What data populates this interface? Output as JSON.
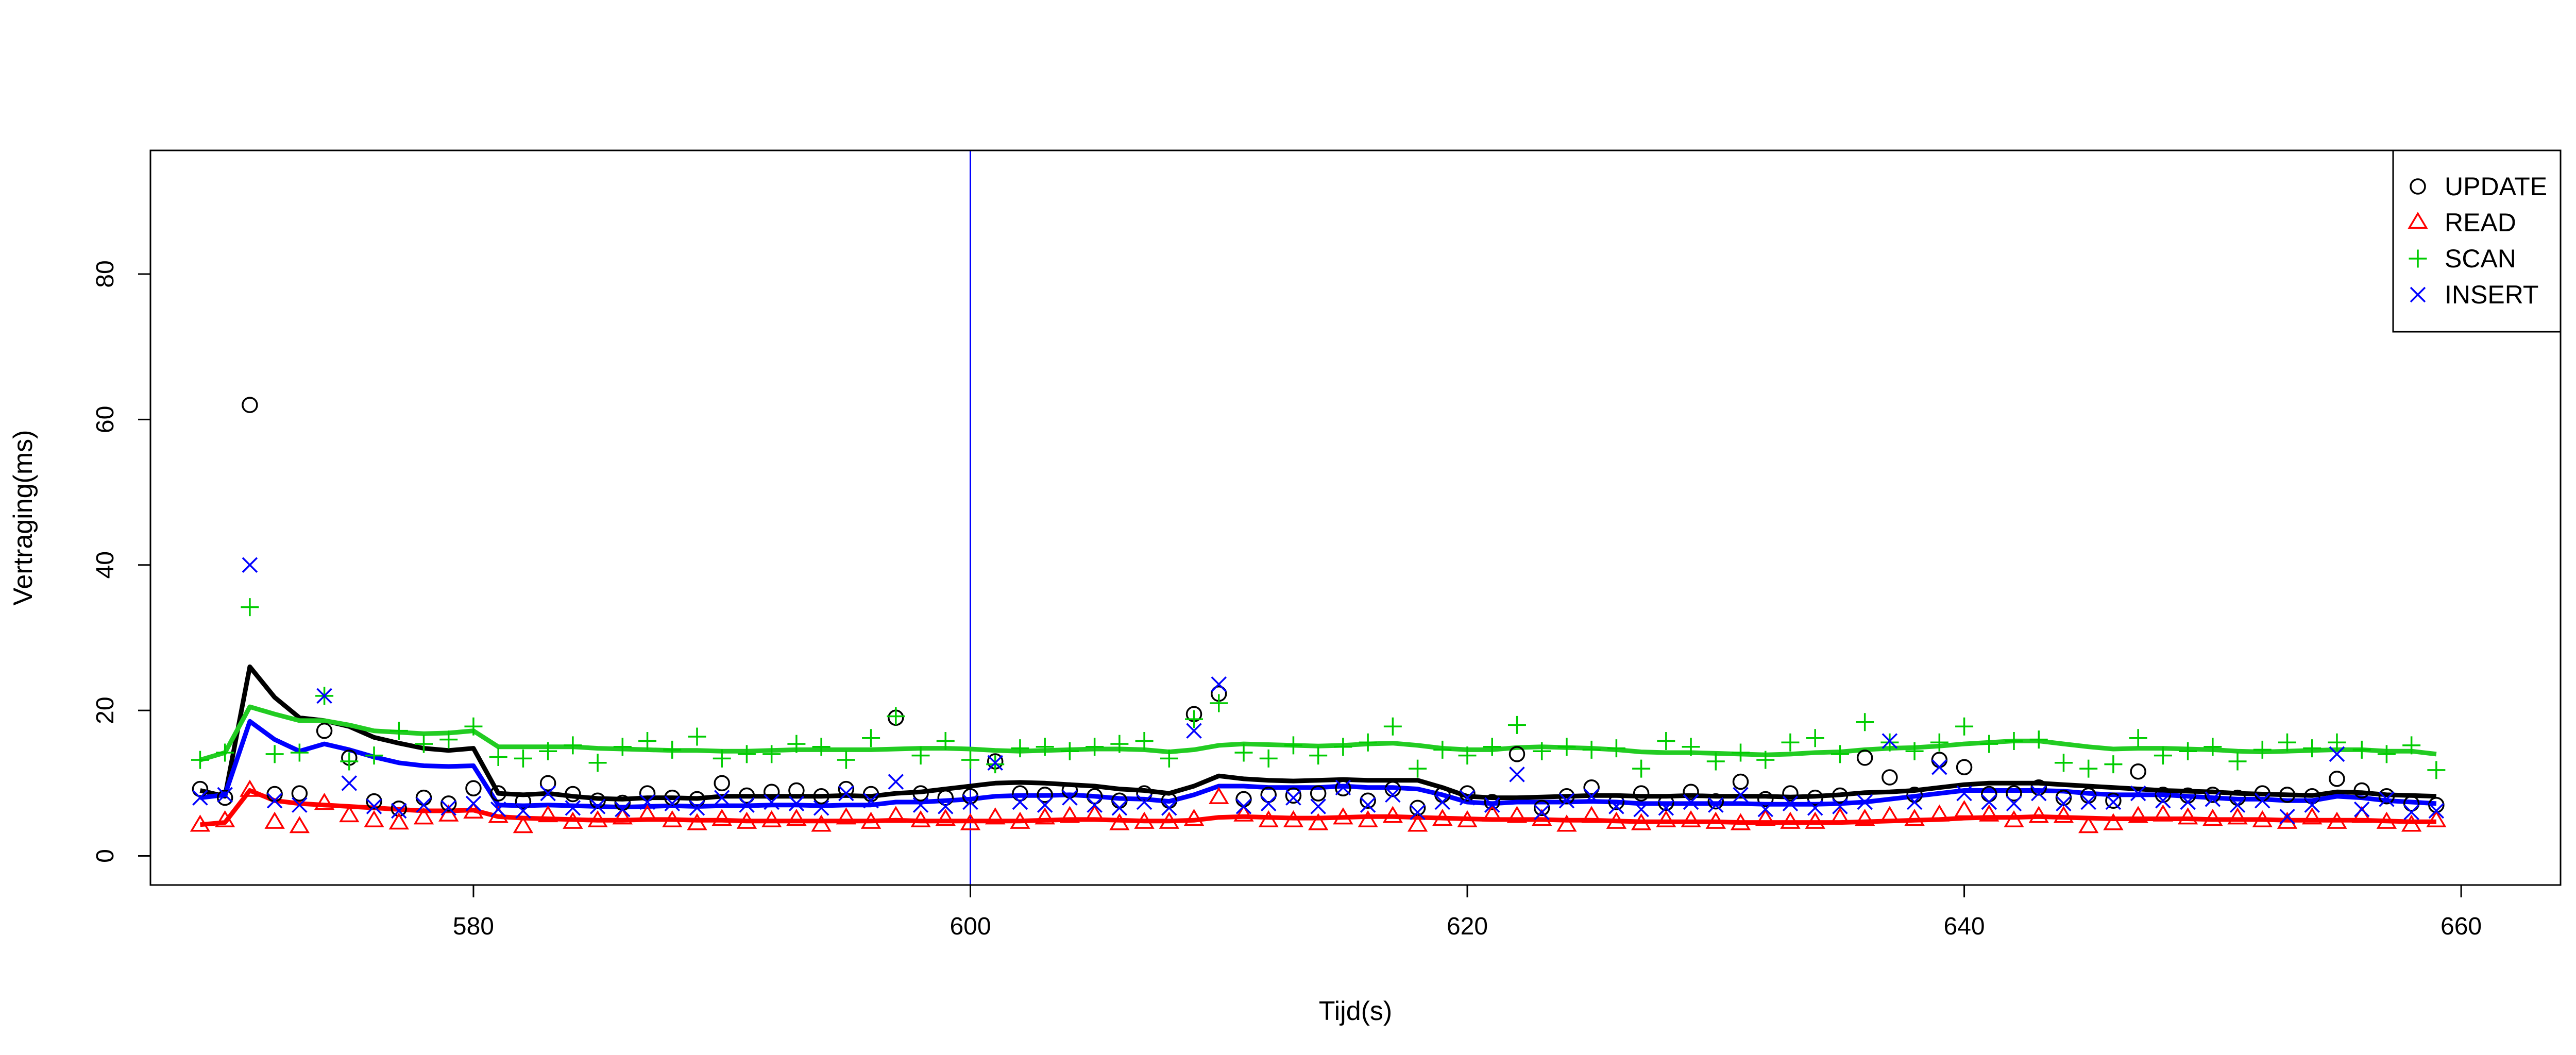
{
  "chart_data": {
    "type": "scatter",
    "xlabel": "Tijd(s)",
    "ylabel": "Vertraging(ms)",
    "xlim": [
      567,
      664
    ],
    "ylim": [
      -4,
      97
    ],
    "x_ticks": [
      "580",
      "600",
      "620",
      "640",
      "660"
    ],
    "y_ticks": [
      "0",
      "20",
      "40",
      "60",
      "80"
    ],
    "grid": false,
    "legend_position": "top-right",
    "vertical_marker": {
      "x": 600,
      "color": "#0000ff"
    },
    "x": [
      569,
      570,
      571,
      572,
      573,
      574,
      575,
      576,
      577,
      578,
      579,
      580,
      581,
      582,
      583,
      584,
      585,
      586,
      587,
      588,
      589,
      590,
      591,
      592,
      593,
      594,
      595,
      596,
      597,
      598,
      599,
      600,
      601,
      602,
      603,
      604,
      605,
      606,
      607,
      608,
      609,
      610,
      611,
      612,
      613,
      614,
      615,
      616,
      617,
      618,
      619,
      620,
      621,
      622,
      623,
      624,
      625,
      626,
      627,
      628,
      629,
      630,
      631,
      632,
      633,
      634,
      635,
      636,
      637,
      638,
      639,
      640,
      641,
      642,
      643,
      644,
      645,
      646,
      647,
      648,
      649,
      650,
      651,
      652,
      653,
      654,
      655,
      656,
      657,
      658,
      659
    ],
    "series": [
      {
        "name": "UPDATE",
        "marker": "circle",
        "color": "#000000",
        "values": [
          9.2,
          8.0,
          62,
          8.5,
          8.6,
          17.2,
          13.5,
          7.5,
          6.5,
          8.0,
          7.2,
          9.3,
          8.6,
          7.5,
          10.0,
          8.5,
          7.6,
          7.3,
          8.6,
          8.0,
          7.8,
          10.0,
          8.3,
          8.8,
          9.0,
          8.2,
          9.2,
          8.5,
          19.0,
          8.6,
          8.0,
          8.2,
          13.0,
          8.6,
          8.4,
          9.0,
          8.2,
          7.6,
          8.6,
          7.6,
          19.5,
          22.3,
          7.8,
          8.4,
          8.3,
          8.6,
          9.3,
          7.6,
          9.2,
          6.6,
          8.4,
          8.6,
          7.4,
          14.0,
          6.6,
          8.2,
          9.4,
          7.4,
          8.6,
          7.3,
          8.8,
          7.5,
          10.2,
          7.8,
          8.6,
          8.0,
          8.3,
          13.5,
          10.8,
          8.4,
          13.2,
          12.2,
          8.5,
          8.6,
          9.4,
          8.0,
          8.3,
          7.6,
          11.6,
          8.4,
          8.3,
          8.4,
          8.0,
          8.6,
          8.4,
          8.2,
          10.6,
          9.0,
          8.2,
          7.2,
          7.0
        ],
        "trend": [
          9.0,
          8.2,
          26.0,
          21.8,
          19.0,
          18.6,
          17.8,
          16.3,
          15.5,
          14.8,
          14.5,
          14.8,
          8.6,
          8.4,
          8.6,
          8.2,
          7.9,
          7.8,
          8.0,
          8.0,
          7.9,
          8.2,
          8.2,
          8.2,
          8.2,
          8.2,
          8.3,
          8.2,
          8.6,
          8.8,
          9.2,
          9.6,
          10.0,
          10.1,
          10.0,
          9.8,
          9.6,
          9.2,
          9.0,
          8.6,
          9.6,
          11.0,
          10.6,
          10.4,
          10.3,
          10.4,
          10.5,
          10.4,
          10.4,
          10.4,
          9.4,
          8.2,
          8.0,
          8.0,
          8.1,
          8.2,
          8.3,
          8.3,
          8.2,
          8.2,
          8.3,
          8.2,
          8.2,
          8.2,
          8.1,
          8.2,
          8.4,
          8.7,
          8.8,
          9.0,
          9.4,
          9.8,
          10.0,
          10.0,
          10.0,
          9.8,
          9.6,
          9.4,
          9.2,
          9.0,
          8.9,
          8.8,
          8.6,
          8.5,
          8.4,
          8.3,
          8.8,
          8.7,
          8.4,
          8.3,
          8.2
        ]
      },
      {
        "name": "READ",
        "marker": "triangle",
        "color": "#ff0000",
        "values": [
          4.2,
          4.8,
          9.0,
          4.6,
          4.0,
          7.2,
          5.5,
          4.8,
          4.5,
          5.2,
          5.6,
          6.0,
          5.4,
          4.0,
          5.5,
          4.6,
          4.8,
          5.2,
          5.6,
          4.8,
          4.4,
          5.0,
          4.6,
          4.8,
          5.0,
          4.2,
          5.2,
          4.6,
          5.4,
          4.8,
          5.0,
          4.4,
          5.2,
          4.6,
          5.2,
          5.4,
          5.6,
          4.4,
          4.6,
          4.6,
          5.0,
          8.0,
          5.6,
          4.8,
          4.8,
          4.4,
          5.2,
          4.8,
          5.4,
          4.2,
          5.0,
          4.8,
          5.6,
          5.4,
          5.0,
          4.2,
          5.4,
          4.6,
          4.4,
          4.8,
          4.8,
          4.6,
          4.4,
          5.0,
          4.6,
          4.6,
          5.2,
          5.0,
          5.4,
          5.0,
          5.6,
          6.2,
          5.6,
          4.8,
          5.4,
          5.4,
          4.0,
          4.4,
          5.4,
          5.6,
          5.2,
          5.0,
          5.2,
          4.8,
          4.6,
          5.2,
          4.6,
          5.4,
          4.6,
          4.2,
          4.8
        ],
        "trend": [
          4.3,
          4.6,
          9.0,
          7.6,
          7.2,
          7.0,
          6.8,
          6.6,
          6.4,
          6.2,
          6.2,
          6.3,
          5.4,
          5.2,
          5.1,
          5.0,
          4.9,
          4.9,
          5.0,
          5.0,
          4.9,
          4.9,
          4.8,
          4.8,
          4.8,
          4.8,
          4.8,
          4.8,
          4.9,
          4.8,
          4.8,
          4.8,
          4.8,
          4.8,
          4.9,
          5.0,
          5.0,
          4.9,
          4.8,
          4.8,
          4.9,
          5.3,
          5.4,
          5.3,
          5.2,
          5.2,
          5.3,
          5.4,
          5.4,
          5.3,
          5.2,
          5.1,
          5.0,
          5.0,
          5.0,
          4.9,
          4.9,
          4.8,
          4.7,
          4.7,
          4.7,
          4.7,
          4.6,
          4.6,
          4.6,
          4.6,
          4.6,
          4.7,
          4.8,
          4.9,
          5.0,
          5.2,
          5.3,
          5.3,
          5.4,
          5.3,
          5.2,
          5.1,
          5.1,
          5.1,
          5.1,
          5.0,
          5.0,
          5.0,
          4.9,
          4.9,
          4.9,
          4.9,
          4.8,
          4.7,
          4.7
        ]
      },
      {
        "name": "SCAN",
        "marker": "plus",
        "color": "#00cc00",
        "values": [
          13.2,
          14.2,
          34.2,
          14.0,
          14.2,
          22.0,
          13.0,
          13.8,
          17.2,
          15.4,
          16.0,
          17.8,
          13.6,
          13.4,
          14.4,
          15.2,
          12.8,
          15.0,
          15.8,
          14.6,
          16.4,
          13.4,
          14.0,
          14.0,
          15.4,
          15.0,
          13.2,
          16.2,
          19.2,
          13.8,
          15.8,
          13.2,
          12.6,
          14.8,
          15.0,
          14.4,
          15.0,
          15.4,
          15.8,
          13.4,
          18.8,
          21.0,
          14.2,
          13.4,
          15.2,
          13.8,
          15.0,
          15.6,
          17.8,
          12.0,
          14.6,
          13.8,
          15.0,
          18.0,
          14.4,
          15.0,
          14.6,
          14.8,
          12.0,
          15.8,
          15.0,
          13.0,
          14.2,
          13.2,
          15.6,
          16.2,
          14.0,
          18.4,
          15.6,
          14.4,
          15.6,
          17.8,
          15.4,
          15.8,
          16.0,
          12.8,
          12.0,
          12.6,
          16.2,
          13.8,
          14.4,
          15.0,
          13.0,
          14.6,
          15.6,
          14.8,
          15.6,
          14.6,
          14.0,
          15.2,
          11.8
        ],
        "trend": [
          13.2,
          14.2,
          20.5,
          19.5,
          18.6,
          18.6,
          18.0,
          17.2,
          17.0,
          16.8,
          16.9,
          17.2,
          15.0,
          15.0,
          15.0,
          15.0,
          14.8,
          14.7,
          14.6,
          14.5,
          14.5,
          14.4,
          14.4,
          14.5,
          14.6,
          14.6,
          14.6,
          14.6,
          14.7,
          14.8,
          14.8,
          14.7,
          14.5,
          14.4,
          14.5,
          14.6,
          14.7,
          14.7,
          14.6,
          14.3,
          14.6,
          15.2,
          15.4,
          15.3,
          15.2,
          15.1,
          15.2,
          15.4,
          15.5,
          15.2,
          14.8,
          14.6,
          14.6,
          14.9,
          15.0,
          14.9,
          14.8,
          14.6,
          14.3,
          14.2,
          14.2,
          14.1,
          14.0,
          13.9,
          14.0,
          14.2,
          14.3,
          14.6,
          14.8,
          14.9,
          15.1,
          15.4,
          15.6,
          15.8,
          15.8,
          15.4,
          15.0,
          14.7,
          14.8,
          14.8,
          14.7,
          14.6,
          14.4,
          14.3,
          14.4,
          14.5,
          14.6,
          14.6,
          14.4,
          14.4,
          14.0
        ]
      },
      {
        "name": "INSERT",
        "marker": "cross",
        "color": "#0000ff",
        "values": [
          8.0,
          8.4,
          40.0,
          7.6,
          7.0,
          22.0,
          10.0,
          6.8,
          6.2,
          7.0,
          6.6,
          7.2,
          6.4,
          6.2,
          8.6,
          6.6,
          6.8,
          6.4,
          7.4,
          7.2,
          6.6,
          8.0,
          7.0,
          7.4,
          7.2,
          6.6,
          8.6,
          7.6,
          10.2,
          7.0,
          6.8,
          7.4,
          12.8,
          7.4,
          7.0,
          8.0,
          7.0,
          6.6,
          7.4,
          6.6,
          17.2,
          23.6,
          6.8,
          7.2,
          8.0,
          6.8,
          9.4,
          7.0,
          8.4,
          6.0,
          7.4,
          8.0,
          7.0,
          11.2,
          6.0,
          7.6,
          8.2,
          6.8,
          6.4,
          6.6,
          7.4,
          7.0,
          8.4,
          6.4,
          7.2,
          6.6,
          6.8,
          7.4,
          15.8,
          7.4,
          12.2,
          8.6,
          7.4,
          7.2,
          8.6,
          7.2,
          7.4,
          7.4,
          8.6,
          7.6,
          7.4,
          7.8,
          7.0,
          7.6,
          5.4,
          7.0,
          14.0,
          6.4,
          7.8,
          6.0,
          6.2
        ],
        "trend": [
          8.0,
          8.4,
          18.5,
          16.0,
          14.4,
          15.4,
          14.6,
          13.6,
          12.8,
          12.4,
          12.3,
          12.4,
          7.0,
          6.9,
          7.0,
          6.9,
          6.8,
          6.7,
          6.8,
          6.9,
          6.8,
          6.9,
          6.9,
          7.0,
          7.0,
          6.9,
          7.0,
          7.0,
          7.4,
          7.4,
          7.6,
          7.8,
          8.2,
          8.3,
          8.3,
          8.4,
          8.2,
          7.9,
          7.8,
          7.5,
          8.4,
          9.6,
          9.6,
          9.4,
          9.4,
          9.4,
          9.6,
          9.4,
          9.4,
          9.2,
          8.4,
          7.4,
          7.2,
          7.4,
          7.4,
          7.4,
          7.5,
          7.4,
          7.2,
          7.2,
          7.2,
          7.2,
          7.2,
          7.1,
          7.1,
          7.1,
          7.2,
          7.4,
          7.8,
          8.2,
          8.6,
          9.0,
          9.0,
          9.0,
          9.0,
          8.9,
          8.6,
          8.4,
          8.4,
          8.4,
          8.2,
          8.0,
          7.8,
          7.8,
          7.6,
          7.6,
          8.2,
          8.0,
          7.6,
          7.4,
          7.2
        ]
      }
    ]
  }
}
